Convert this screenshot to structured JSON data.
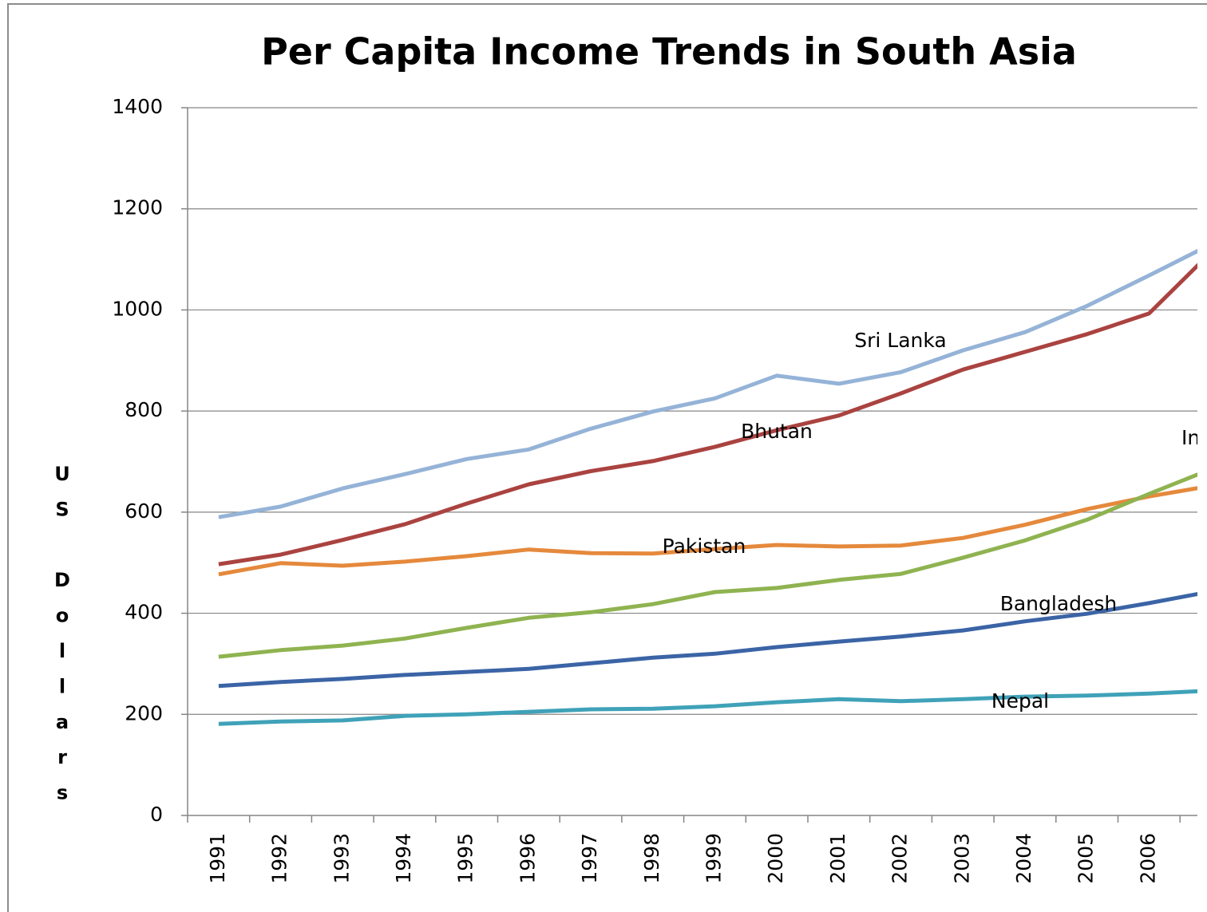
{
  "chart_data": {
    "type": "line",
    "title": "Per Capita Income Trends in South Asia",
    "y_axis_label": "US Dollars",
    "categories": [
      "1991",
      "1992",
      "1993",
      "1994",
      "1995",
      "1996",
      "1997",
      "1998",
      "1999",
      "2000",
      "2001",
      "2002",
      "2003",
      "2004",
      "2005",
      "2006",
      null
    ],
    "series": [
      {
        "name": "Sri Lanka",
        "color": "#95b3d7",
        "values": [
          590,
          611,
          647,
          675,
          705,
          724,
          765,
          799,
          825,
          870,
          854,
          877,
          920,
          956,
          1008,
          1068,
          1130
        ]
      },
      {
        "name": "Bhutan",
        "color": "#aa4340",
        "values": [
          497,
          516,
          545,
          576,
          617,
          655,
          681,
          701,
          729,
          762,
          791,
          835,
          882,
          917,
          952,
          993,
          1114
        ]
      },
      {
        "name": "Pakistan",
        "color": "#e5893c",
        "values": [
          477,
          499,
          494,
          502,
          513,
          526,
          519,
          518,
          527,
          535,
          532,
          534,
          549,
          575,
          606,
          631,
          652
        ]
      },
      {
        "name": "India",
        "color": "#8fb350",
        "values": [
          314,
          327,
          336,
          350,
          371,
          391,
          402,
          418,
          442,
          450,
          466,
          478,
          510,
          544,
          585,
          636,
          685
        ]
      },
      {
        "name": "Bangladesh",
        "color": "#3b64a6",
        "values": [
          256,
          264,
          270,
          278,
          284,
          290,
          301,
          312,
          320,
          333,
          344,
          354,
          366,
          384,
          399,
          420,
          443
        ]
      },
      {
        "name": "Nepal",
        "color": "#3fa2b8",
        "values": [
          181,
          186,
          188,
          197,
          200,
          205,
          210,
          211,
          216,
          224,
          230,
          226,
          230,
          235,
          237,
          241,
          247
        ]
      }
    ],
    "ylim": [
      0,
      1400
    ],
    "yticks": [
      0,
      200,
      400,
      600,
      800,
      1000,
      1200,
      1400
    ],
    "grid": true
  }
}
